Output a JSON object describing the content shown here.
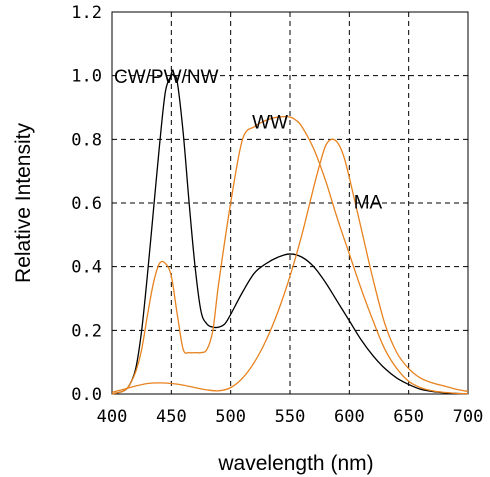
{
  "chart_data": {
    "type": "line",
    "xlabel": "wavelength (nm)",
    "ylabel": "Relative Intensity",
    "xlim": [
      400,
      700
    ],
    "ylim": [
      0.0,
      1.2
    ],
    "x_ticks": [
      "400",
      "450",
      "500",
      "550",
      "600",
      "650",
      "700"
    ],
    "y_ticks": [
      "0.0",
      "0.2",
      "0.4",
      "0.6",
      "0.8",
      "1.0",
      "1.2"
    ],
    "grid": "dashed",
    "series": [
      {
        "name": "CW/PW/NW",
        "color": "#000000",
        "x": [
          400,
          410,
          415,
          420,
          425,
          430,
          435,
          440,
          445,
          450,
          452,
          455,
          460,
          465,
          470,
          475,
          480,
          485,
          490,
          495,
          500,
          510,
          520,
          530,
          540,
          550,
          560,
          570,
          580,
          590,
          600,
          610,
          620,
          630,
          640,
          650,
          660,
          670,
          680,
          690,
          700
        ],
        "y": [
          0.0,
          0.01,
          0.03,
          0.08,
          0.2,
          0.38,
          0.58,
          0.78,
          0.95,
          1.0,
          1.0,
          0.98,
          0.82,
          0.6,
          0.4,
          0.26,
          0.22,
          0.21,
          0.21,
          0.22,
          0.25,
          0.32,
          0.38,
          0.41,
          0.43,
          0.44,
          0.43,
          0.4,
          0.35,
          0.29,
          0.23,
          0.17,
          0.12,
          0.08,
          0.05,
          0.03,
          0.015,
          0.008,
          0.004,
          0.002,
          0.001
        ]
      },
      {
        "name": "WW",
        "color": "#e8821e",
        "x": [
          400,
          410,
          415,
          420,
          425,
          430,
          435,
          440,
          445,
          450,
          455,
          460,
          465,
          470,
          475,
          480,
          485,
          490,
          500,
          510,
          520,
          530,
          540,
          550,
          555,
          560,
          570,
          580,
          590,
          600,
          610,
          620,
          630,
          640,
          650,
          660,
          670,
          680,
          690,
          700
        ],
        "y": [
          0.0,
          0.01,
          0.03,
          0.07,
          0.14,
          0.25,
          0.35,
          0.41,
          0.41,
          0.37,
          0.25,
          0.14,
          0.13,
          0.13,
          0.13,
          0.14,
          0.2,
          0.35,
          0.6,
          0.8,
          0.84,
          0.86,
          0.87,
          0.87,
          0.86,
          0.84,
          0.77,
          0.67,
          0.55,
          0.44,
          0.33,
          0.23,
          0.14,
          0.08,
          0.04,
          0.02,
          0.01,
          0.005,
          0.002,
          0.001
        ]
      },
      {
        "name": "MA",
        "color": "#e8821e",
        "x": [
          400,
          410,
          420,
          430,
          440,
          450,
          460,
          470,
          480,
          490,
          500,
          510,
          520,
          530,
          540,
          550,
          560,
          570,
          575,
          580,
          585,
          590,
          595,
          600,
          610,
          620,
          630,
          640,
          650,
          660,
          670,
          680,
          690,
          700
        ],
        "y": [
          0.005,
          0.015,
          0.025,
          0.033,
          0.035,
          0.033,
          0.028,
          0.02,
          0.013,
          0.01,
          0.02,
          0.05,
          0.1,
          0.17,
          0.26,
          0.37,
          0.5,
          0.65,
          0.72,
          0.78,
          0.8,
          0.79,
          0.75,
          0.68,
          0.52,
          0.36,
          0.22,
          0.13,
          0.08,
          0.05,
          0.035,
          0.025,
          0.015,
          0.008
        ]
      }
    ]
  }
}
